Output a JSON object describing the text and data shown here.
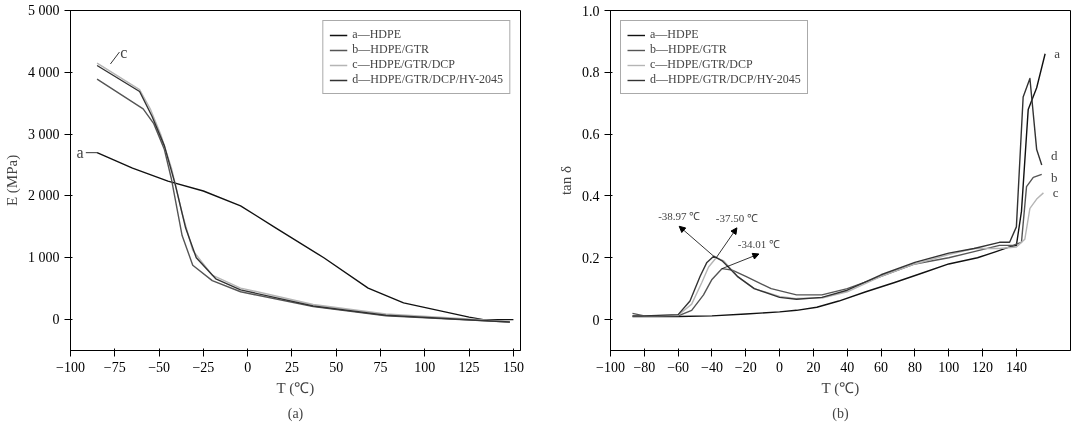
{
  "chart_data": [
    {
      "type": "line",
      "title": "(a)",
      "xlabel": "T (℃)",
      "ylabel": "E (MPa)",
      "xlim": [
        -100,
        154
      ],
      "xticks": [
        -100,
        -75,
        -50,
        -25,
        0,
        25,
        50,
        75,
        100,
        125,
        150
      ],
      "ylim": [
        -500,
        5000
      ],
      "yticks": [
        0,
        {
          "value": 1000,
          "label": "1 000"
        },
        {
          "value": 2000,
          "label": "2 000"
        },
        {
          "value": 3000,
          "label": "3 000"
        },
        {
          "value": 4000,
          "label": "4 000"
        },
        {
          "value": 5000,
          "label": "5 000"
        }
      ],
      "grid": false,
      "legend": "top right",
      "line_style": "solid",
      "marker": "none",
      "series": [
        {
          "name": "a—HDPE",
          "color": "#111111",
          "x": [
            -85,
            -65,
            -45,
            -25,
            -4,
            16,
            43,
            68,
            88,
            125,
            133,
            150
          ],
          "values": [
            2700,
            2450,
            2240,
            2080,
            1840,
            1480,
            1000,
            510,
            270,
            40,
            0,
            0
          ]
        },
        {
          "name": "b—HDPE/GTR",
          "color": "#555555",
          "x": [
            -85,
            -59,
            -53,
            -47,
            -43,
            -37,
            -31,
            -20,
            -4,
            37,
            78,
            148
          ],
          "values": [
            3890,
            3410,
            3170,
            2750,
            2270,
            1360,
            880,
            630,
            450,
            210,
            60,
            -40
          ]
        },
        {
          "name": "c—HDPE/GTR/DCP",
          "color": "#b5b5b5",
          "x": [
            -85,
            -61,
            -55,
            -49,
            -43,
            -37,
            -31,
            -20,
            -4,
            37,
            78,
            148
          ],
          "values": [
            4150,
            3720,
            3410,
            2990,
            2450,
            1720,
            1120,
            720,
            510,
            245,
            90,
            -30
          ]
        },
        {
          "name": "d—HDPE/GTR/DCP/HY-2045",
          "color": "#333333",
          "x": [
            -85,
            -61,
            -54,
            -47,
            -41,
            -35,
            -29,
            -18,
            -4,
            37,
            78,
            148
          ],
          "values": [
            4110,
            3690,
            3290,
            2810,
            2200,
            1480,
            1000,
            660,
            480,
            220,
            70,
            -40
          ]
        }
      ],
      "annotations": [
        {
          "text": "a",
          "x": -85,
          "y": 2700
        },
        {
          "text": "c",
          "x": -80,
          "y": 4080
        }
      ]
    },
    {
      "type": "line",
      "title": "(b)",
      "xlabel": "T (℃)",
      "ylabel": "tan δ",
      "xlim": [
        -100,
        172
      ],
      "xticks": [
        -100,
        -80,
        -60,
        -40,
        -20,
        0,
        20,
        40,
        60,
        80,
        100,
        120,
        140
      ],
      "ylim": [
        -0.1,
        1.0
      ],
      "yticks": [
        0,
        0.2,
        0.4,
        0.6,
        0.8,
        {
          "value": 1.0,
          "label": "1.0"
        }
      ],
      "grid": false,
      "legend": "top left",
      "line_style": "solid",
      "marker": "none",
      "series": [
        {
          "name": "a—HDPE",
          "color": "#111111",
          "x": [
            -87,
            -60,
            -40,
            -20,
            0,
            10,
            22,
            35,
            51,
            68,
            84,
            100,
            117,
            128,
            136,
            140,
            143,
            147,
            152,
            157
          ],
          "values": [
            0.01,
            0.01,
            0.012,
            0.018,
            0.025,
            0.03,
            0.04,
            0.06,
            0.09,
            0.12,
            0.15,
            0.18,
            0.2,
            0.22,
            0.235,
            0.24,
            0.35,
            0.68,
            0.75,
            0.86
          ]
        },
        {
          "name": "b—HDPE/GTR",
          "color": "#555555",
          "x": [
            -87,
            -80,
            -60,
            -52,
            -45,
            -40,
            -34,
            -28,
            -20,
            -5,
            10,
            25,
            40,
            60,
            80,
            100,
            115,
            130,
            138,
            143,
            146,
            150,
            155
          ],
          "values": [
            0.02,
            0.012,
            0.012,
            0.03,
            0.08,
            0.13,
            0.165,
            0.16,
            0.14,
            0.1,
            0.08,
            0.08,
            0.1,
            0.14,
            0.18,
            0.2,
            0.22,
            0.24,
            0.24,
            0.25,
            0.43,
            0.46,
            0.47
          ]
        },
        {
          "name": "c—HDPE/GTR/DCP",
          "color": "#b5b5b5",
          "x": [
            -87,
            -80,
            -60,
            -52,
            -46,
            -42,
            -37.5,
            -33,
            -25,
            -15,
            0,
            10,
            25,
            40,
            60,
            80,
            100,
            115,
            130,
            140,
            145,
            148,
            152,
            156
          ],
          "values": [
            0.012,
            0.012,
            0.014,
            0.05,
            0.12,
            0.17,
            0.2,
            0.19,
            0.14,
            0.1,
            0.075,
            0.068,
            0.07,
            0.09,
            0.14,
            0.18,
            0.21,
            0.23,
            0.23,
            0.235,
            0.26,
            0.36,
            0.39,
            0.41
          ]
        },
        {
          "name": "d—HDPE/GTR/DCP/HY-2045",
          "color": "#333333",
          "x": [
            -87,
            -80,
            -60,
            -53,
            -47,
            -43,
            -38.97,
            -34,
            -25,
            -15,
            0,
            10,
            25,
            40,
            60,
            80,
            100,
            115,
            130,
            136,
            140,
            144,
            148,
            152,
            155
          ],
          "values": [
            0.012,
            0.012,
            0.016,
            0.06,
            0.14,
            0.185,
            0.205,
            0.19,
            0.14,
            0.1,
            0.072,
            0.066,
            0.072,
            0.095,
            0.145,
            0.185,
            0.215,
            0.23,
            0.25,
            0.25,
            0.3,
            0.72,
            0.78,
            0.55,
            0.5
          ]
        }
      ],
      "annotations": [
        {
          "text": "-38.97 ℃",
          "x": -38.97,
          "y": 0.205
        },
        {
          "text": "-37.50 ℃",
          "x": -37.5,
          "y": 0.2
        },
        {
          "text": "-34.01 ℃",
          "x": -34.01,
          "y": 0.165
        },
        {
          "text": "a",
          "x": 157,
          "y": 0.86
        },
        {
          "text": "d",
          "x": 155,
          "y": 0.53
        },
        {
          "text": "b",
          "x": 155,
          "y": 0.46
        },
        {
          "text": "c",
          "x": 156,
          "y": 0.41
        }
      ]
    }
  ]
}
